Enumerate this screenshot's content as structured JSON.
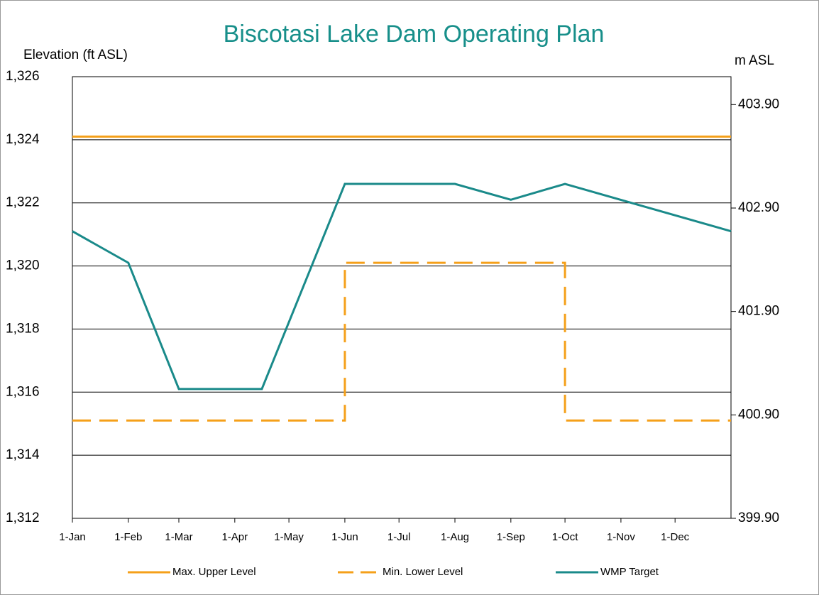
{
  "chart_data": {
    "type": "line",
    "title": "Biscotasi Lake Dam Operating Plan",
    "y_label": "Elevation (ft ASL)",
    "y2_label": "m ASL",
    "xlim": [
      0,
      365
    ],
    "xticks": [
      {
        "value": 0,
        "label": "1-Jan"
      },
      {
        "value": 31,
        "label": "1-Feb"
      },
      {
        "value": 59,
        "label": "1-Mar"
      },
      {
        "value": 90,
        "label": "1-Apr"
      },
      {
        "value": 120,
        "label": "1-May"
      },
      {
        "value": 151,
        "label": "1-Jun"
      },
      {
        "value": 181,
        "label": "1-Jul"
      },
      {
        "value": 212,
        "label": "1-Aug"
      },
      {
        "value": 243,
        "label": "1-Sep"
      },
      {
        "value": 273,
        "label": "1-Oct"
      },
      {
        "value": 304,
        "label": "1-Nov"
      },
      {
        "value": 334,
        "label": "1-Dec"
      }
    ],
    "ylim": [
      1312,
      1326
    ],
    "yticks": [
      {
        "value": 1312,
        "label": "1,312"
      },
      {
        "value": 1314,
        "label": "1,314"
      },
      {
        "value": 1316,
        "label": "1,316"
      },
      {
        "value": 1318,
        "label": "1,318"
      },
      {
        "value": 1320,
        "label": "1,320"
      },
      {
        "value": 1322,
        "label": "1,322"
      },
      {
        "value": 1324,
        "label": "1,324"
      },
      {
        "value": 1326,
        "label": "1,326"
      }
    ],
    "y2lim": [
      399.9,
      404.17
    ],
    "y2ticks": [
      {
        "value": 399.9,
        "label": "399.90"
      },
      {
        "value": 400.9,
        "label": "400.90"
      },
      {
        "value": 401.9,
        "label": "401.90"
      },
      {
        "value": 402.9,
        "label": "402.90"
      },
      {
        "value": 403.9,
        "label": "403.90"
      }
    ],
    "grid": true,
    "legend": "bottom",
    "series": [
      {
        "name": "Max. Upper Level",
        "color": "#f5a01a",
        "dashed": false,
        "x": [
          0,
          365
        ],
        "values": [
          1324.1,
          1324.1
        ]
      },
      {
        "name": "Min. Lower Level",
        "color": "#f5a01a",
        "dashed": true,
        "x": [
          0,
          151,
          151,
          273,
          273,
          365
        ],
        "values": [
          1315.1,
          1315.1,
          1320.1,
          1320.1,
          1315.1,
          1315.1
        ]
      },
      {
        "name": "WMP Target",
        "color": "#1a8a8a",
        "dashed": false,
        "x": [
          0,
          31,
          59,
          105,
          151,
          212,
          243,
          273,
          365
        ],
        "values": [
          1321.1,
          1320.1,
          1316.1,
          1316.1,
          1322.6,
          1322.6,
          1322.1,
          1322.6,
          1321.1
        ]
      }
    ]
  }
}
